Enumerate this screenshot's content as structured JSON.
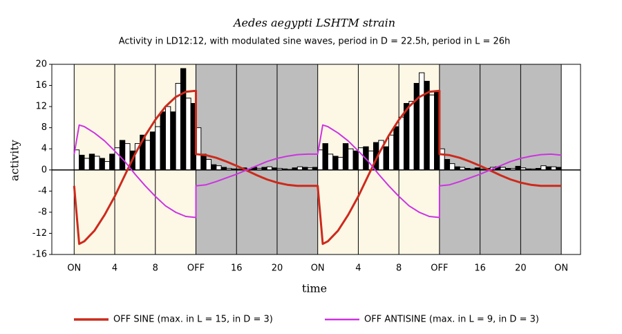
{
  "chart_data": {
    "type": "bar-line",
    "title": "Aedes aegypti LSHTM strain",
    "subtitle": "Activity in LD12:12, with modulated sine waves, period in D = 22.5h, period in L = 26h",
    "x_label": "time",
    "y_label": "activity",
    "xlim": [
      -2.2,
      49.9
    ],
    "xticks": [
      {
        "value": 0,
        "label": "ON"
      },
      4,
      8,
      {
        "value": 12,
        "label": "OFF"
      },
      16,
      20,
      {
        "value": 24,
        "label": "ON"
      },
      {
        "value": 28,
        "label": "4"
      },
      {
        "value": 32,
        "label": "8"
      },
      {
        "value": 36,
        "label": "OFF"
      },
      {
        "value": 40,
        "label": "16"
      },
      {
        "value": 44,
        "label": "20"
      },
      {
        "value": 48,
        "label": "ON"
      }
    ],
    "ylim": [
      -16,
      20
    ],
    "yticks": [
      20,
      16,
      12,
      8,
      4,
      0,
      -4,
      -8,
      -12,
      -16
    ],
    "shading": [
      {
        "from": 0,
        "to": 12,
        "color": "#fdf7e6"
      },
      {
        "from": 12,
        "to": 24,
        "color": "#bdbdbd"
      },
      {
        "from": 24,
        "to": 36,
        "color": "#fdf7e6"
      },
      {
        "from": 36,
        "to": 48,
        "color": "#bdbdbd"
      }
    ],
    "bars": {
      "bar_width": 0.5,
      "colors": [
        "#ffffff",
        "#000000"
      ],
      "x": [
        0,
        0.5,
        1,
        1.5,
        2,
        2.5,
        3,
        3.5,
        4,
        4.5,
        5,
        5.5,
        6,
        6.5,
        7,
        7.5,
        8,
        8.5,
        9,
        9.5,
        10,
        10.5,
        11,
        11.5,
        12,
        12.5,
        13,
        13.5,
        14,
        14.5,
        15,
        15.5,
        16,
        16.5,
        17,
        17.5,
        18,
        18.5,
        19,
        19.5,
        20,
        20.5,
        21,
        21.5,
        22,
        22.5,
        23,
        23.5,
        24,
        24.5,
        25,
        25.5,
        26,
        26.5,
        27,
        27.5,
        28,
        28.5,
        29,
        29.5,
        30,
        30.5,
        31,
        31.5,
        32,
        32.5,
        33,
        33.5,
        34,
        34.5,
        35,
        35.5,
        36,
        36.5,
        37,
        37.5,
        38,
        38.5,
        39,
        39.5,
        40,
        40.5,
        41,
        41.5,
        42,
        42.5,
        43,
        43.5,
        44,
        44.5,
        45,
        45.5,
        46,
        46.5,
        47,
        47.5
      ],
      "values": [
        3.8,
        2.8,
        2.2,
        3,
        2.6,
        2.2,
        1.6,
        3,
        4.2,
        5.6,
        5,
        3.6,
        5,
        6.6,
        5.6,
        7.2,
        8.2,
        11,
        12,
        11,
        16.4,
        19.2,
        13.6,
        12.6,
        8,
        3,
        2,
        1,
        0.8,
        0.5,
        0.3,
        0.2,
        0.2,
        0.4,
        0.2,
        0.5,
        0.3,
        0.5,
        0.6,
        0.4,
        0.3,
        0.2,
        0.1,
        0.4,
        0.6,
        0.5,
        0.4,
        0.5,
        3.8,
        5,
        3,
        2.6,
        2.4,
        5,
        4,
        3.6,
        4.2,
        4.4,
        3.6,
        5.2,
        5.6,
        4.4,
        6.6,
        8.2,
        10,
        12.6,
        13,
        16.4,
        18.4,
        16.8,
        14.2,
        15,
        4,
        2,
        1.2,
        0.6,
        0.5,
        0.3,
        0.2,
        0.4,
        0.2,
        0.3,
        0.5,
        0.6,
        0.5,
        0.3,
        0.3,
        0.7,
        0.4,
        0.2,
        0.2,
        0.3,
        0.8,
        0.6,
        0.6,
        0.5
      ]
    },
    "series": [
      {
        "name": "OFF SINE (max. in L = 15, in D = 3)",
        "color": "#cc2a1c",
        "width": 3,
        "x": [
          0,
          0.5,
          1,
          2,
          3,
          4,
          5,
          6,
          7,
          8,
          9,
          10,
          11,
          12,
          12,
          13,
          14,
          15,
          16,
          17,
          18,
          19,
          20,
          21,
          22,
          23,
          24,
          24.5,
          25,
          26,
          27,
          28,
          29,
          30,
          31,
          32,
          33,
          34,
          35,
          36,
          36,
          37,
          38,
          39,
          40,
          41,
          42,
          43,
          44,
          45,
          46,
          47,
          48
        ],
        "values": [
          -3,
          -14,
          -13.5,
          -11.5,
          -8.5,
          -5,
          -1,
          3,
          6.5,
          9.5,
          12,
          13.8,
          14.8,
          15,
          3,
          2.8,
          2.3,
          1.6,
          0.8,
          -0.1,
          -1,
          -1.8,
          -2.4,
          -2.8,
          -3,
          -3,
          -3,
          -14,
          -13.5,
          -11.5,
          -8.5,
          -5,
          -1,
          3,
          6.5,
          9.5,
          12,
          13.8,
          14.8,
          15,
          3,
          2.8,
          2.3,
          1.6,
          0.8,
          -0.1,
          -1,
          -1.8,
          -2.4,
          -2.8,
          -3,
          -3,
          -3
        ]
      },
      {
        "name": "OFF ANTISINE (max. in L = 9, in D = 3)",
        "color": "#cc33e0",
        "width": 2,
        "x": [
          0,
          0.5,
          1,
          2,
          3,
          4,
          5,
          6,
          7,
          8,
          9,
          10,
          11,
          12,
          12,
          13,
          14,
          15,
          16,
          17,
          18,
          19,
          20,
          21,
          22,
          23,
          24,
          24.5,
          25,
          26,
          27,
          28,
          29,
          30,
          31,
          32,
          33,
          34,
          35,
          36,
          36,
          37,
          38,
          39,
          40,
          41,
          42,
          43,
          44,
          45,
          46,
          47,
          48
        ],
        "values": [
          3,
          8.5,
          8.2,
          7,
          5.5,
          3.6,
          1.6,
          -0.8,
          -3,
          -5,
          -6.8,
          -8,
          -8.8,
          -9,
          -3,
          -2.8,
          -2.2,
          -1.5,
          -0.8,
          0,
          0.8,
          1.6,
          2.2,
          2.6,
          2.9,
          3,
          3,
          8.5,
          8.2,
          7,
          5.5,
          3.6,
          1.6,
          -0.8,
          -3,
          -5,
          -6.8,
          -8,
          -8.8,
          -9,
          -3,
          -2.8,
          -2.2,
          -1.5,
          -0.8,
          0,
          0.8,
          1.6,
          2.2,
          2.6,
          2.9,
          3,
          2.8
        ]
      }
    ]
  }
}
